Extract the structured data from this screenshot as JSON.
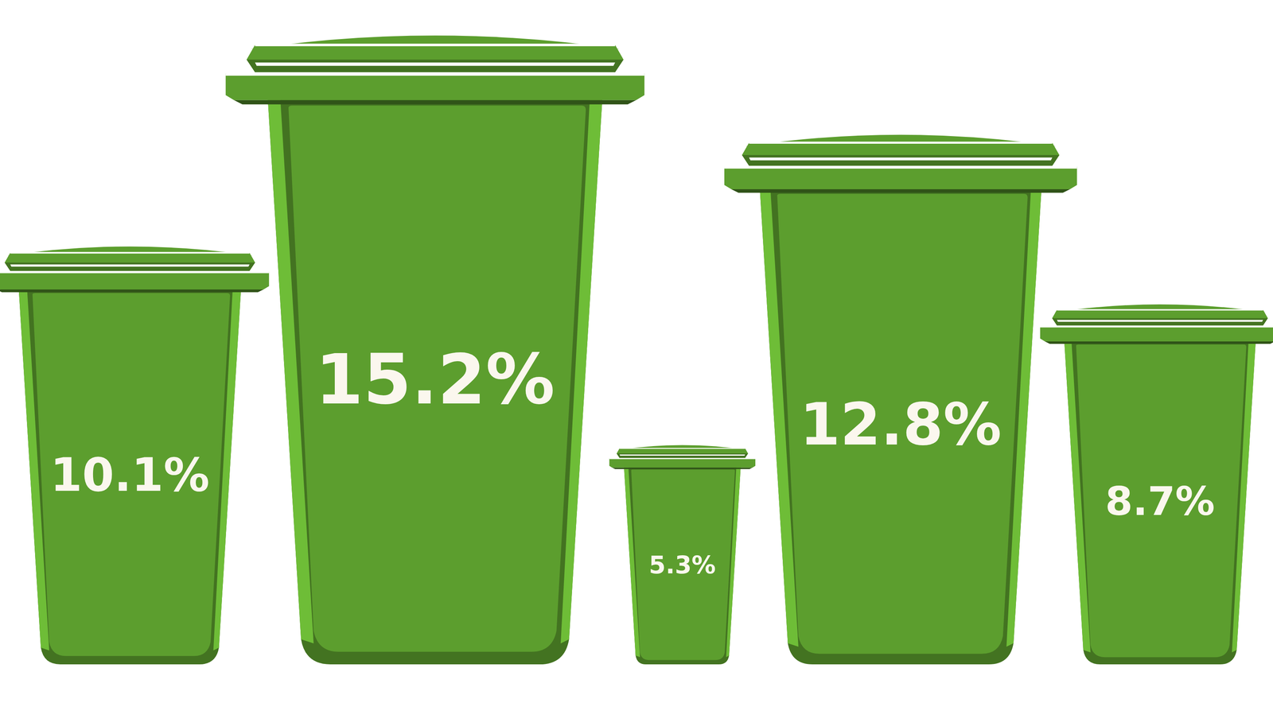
{
  "chart_data": {
    "type": "bar",
    "categories": [
      null,
      null,
      null,
      null,
      null
    ],
    "values": [
      10.1,
      15.2,
      5.3,
      12.8,
      8.7
    ],
    "value_labels": [
      "10.1%",
      "15.2%",
      "5.3%",
      "12.8%",
      "8.7%"
    ],
    "data_labels": true,
    "tick_labels": false,
    "color": "#5c9e2e"
  }
}
